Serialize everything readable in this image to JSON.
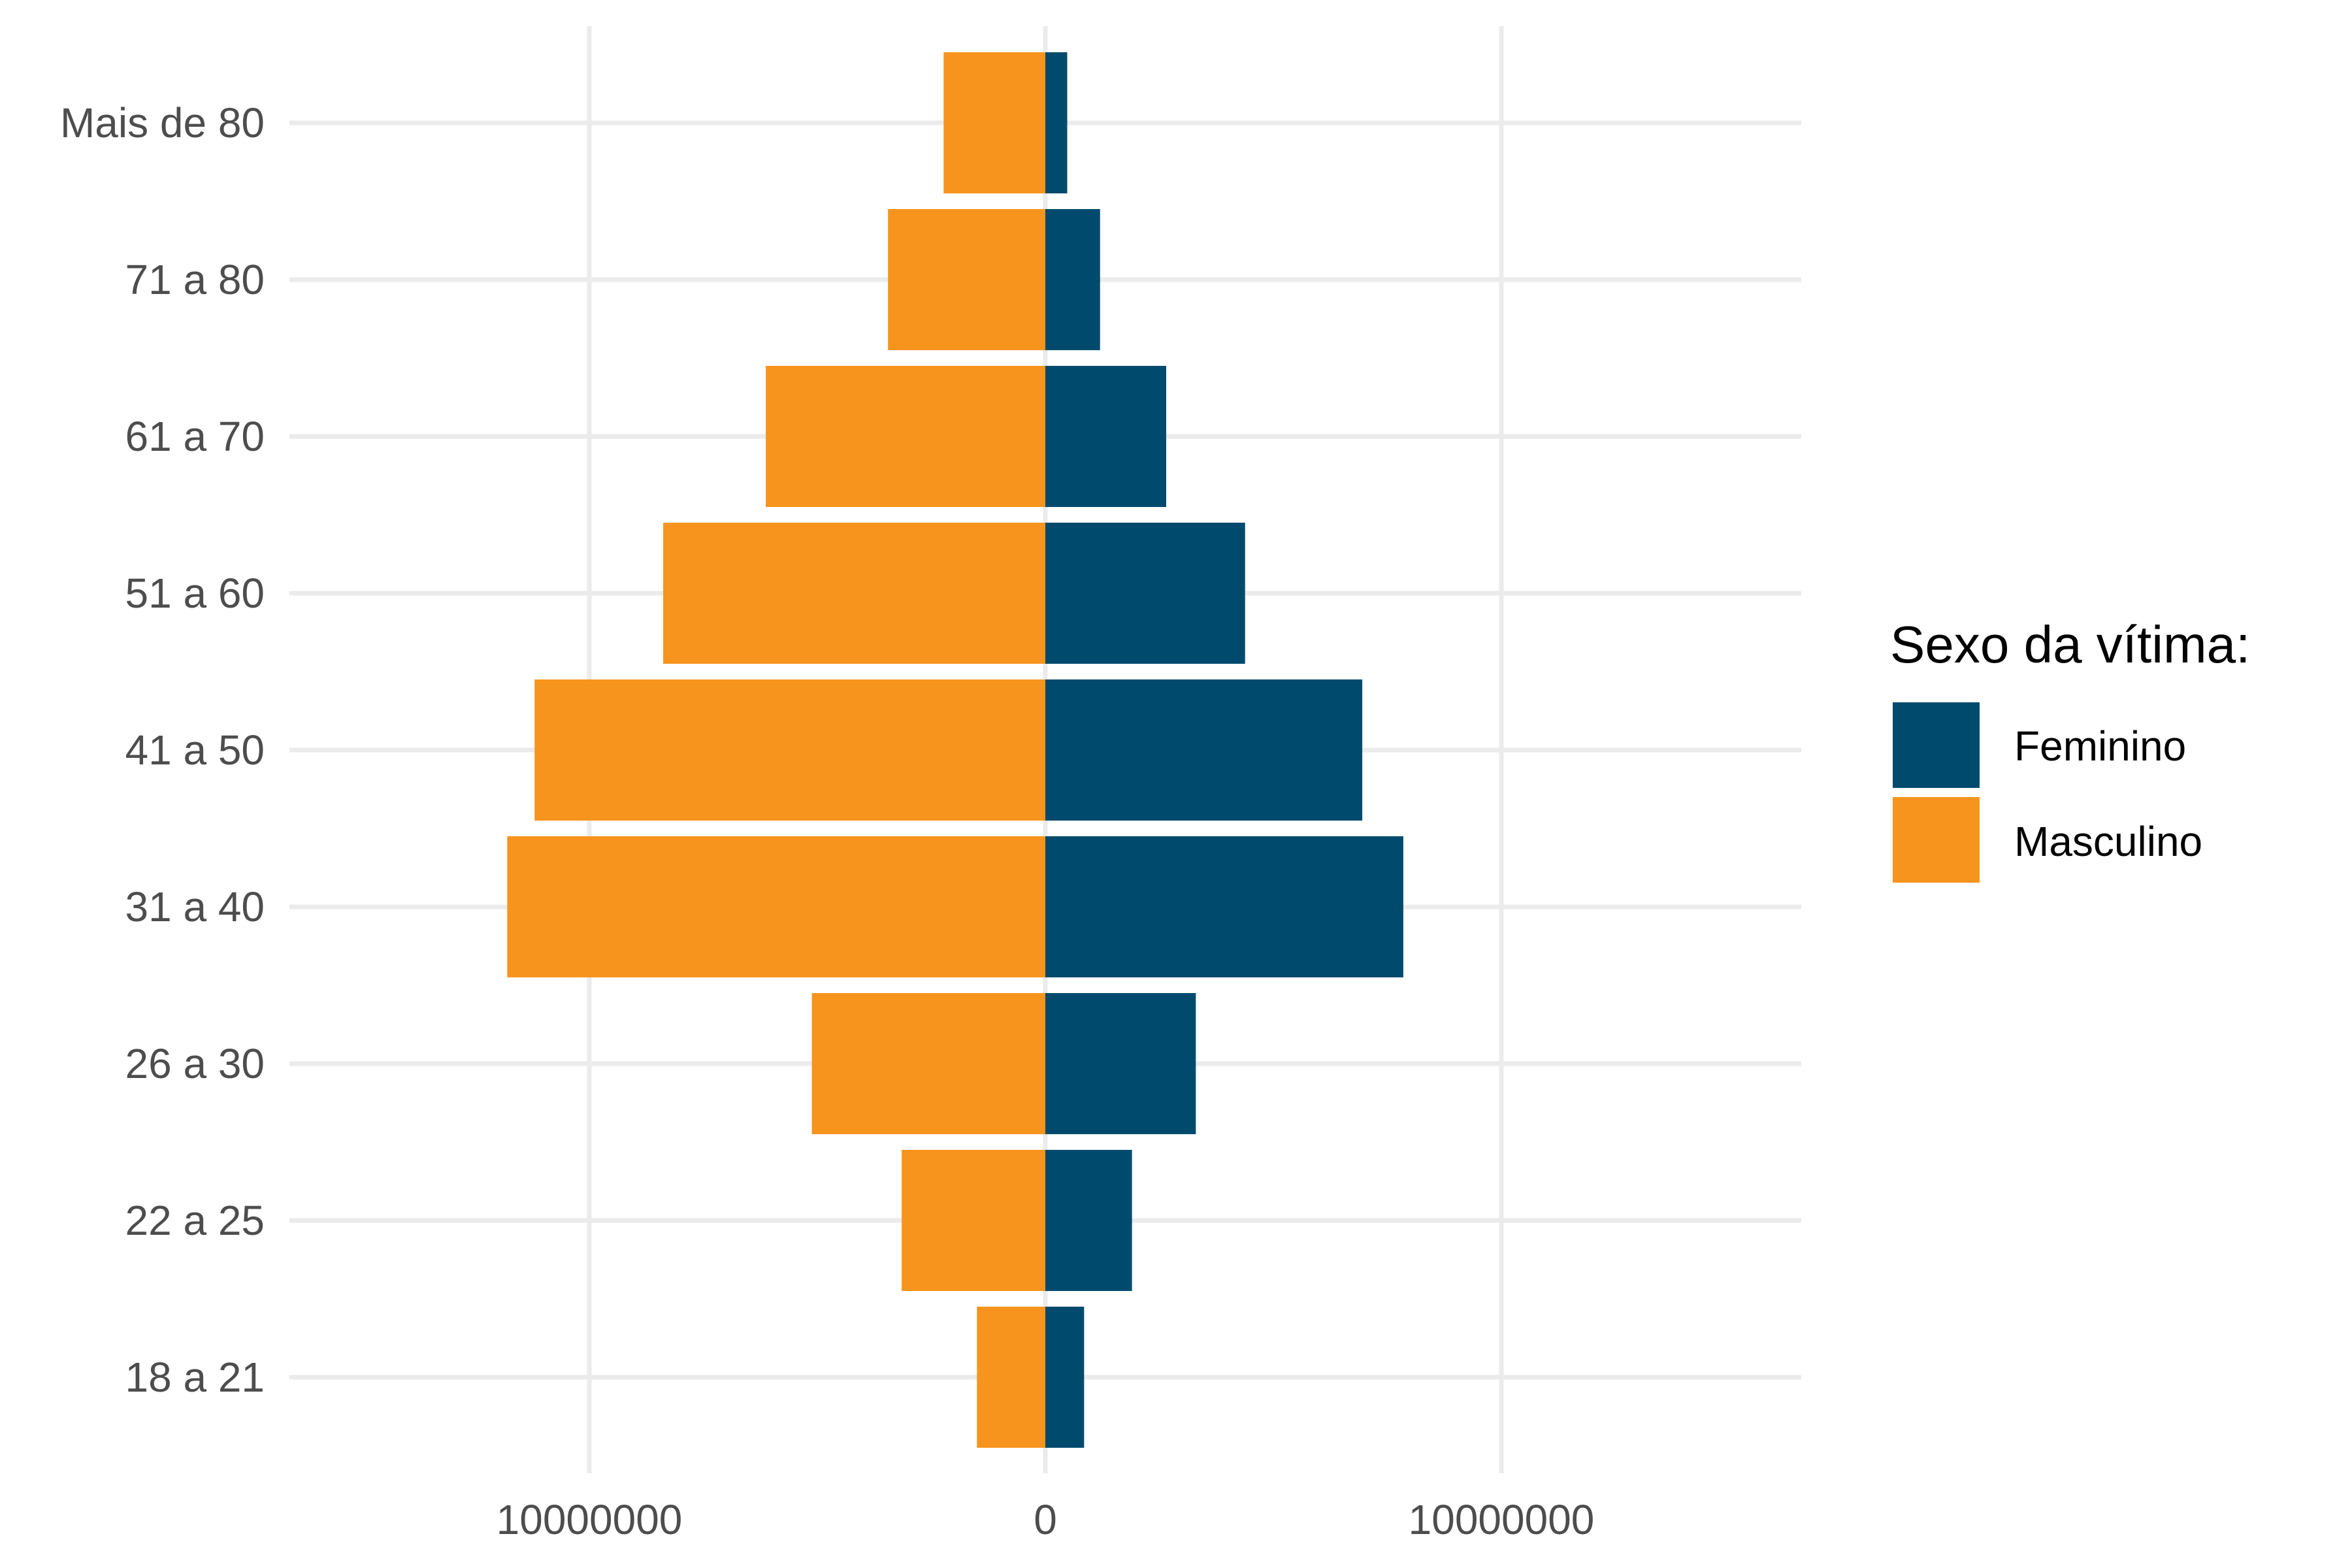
{
  "chart_data": {
    "type": "bar",
    "orientation": "horizontal",
    "layout": "population-pyramid",
    "categories": [
      "18 a 21",
      "22 a 25",
      "26 a 30",
      "31 a 40",
      "41 a 50",
      "51 a 60",
      "61 a 70",
      "71 a 80",
      "Mais de 80"
    ],
    "series": [
      {
        "name": "Feminino",
        "color": "#004a6e",
        "side": "positive",
        "values": [
          850000,
          1900000,
          3300000,
          7850000,
          6950000,
          4380000,
          2650000,
          1200000,
          480000
        ]
      },
      {
        "name": "Masculino",
        "color": "#f7941d",
        "side": "negative",
        "values": [
          1500000,
          3150000,
          5120000,
          11800000,
          11200000,
          8380000,
          6130000,
          3450000,
          2230000
        ]
      }
    ],
    "xlim": [
      -16500000,
      16500000
    ],
    "x_ticks": [
      -10000000,
      0,
      10000000
    ],
    "x_tick_labels": [
      "10000000",
      "0",
      "10000000"
    ],
    "xlabel": "",
    "ylabel": "",
    "grid": true,
    "legend": {
      "title": "Sexo da vítima:",
      "position": "right",
      "items": [
        "Feminino",
        "Masculino"
      ]
    }
  }
}
